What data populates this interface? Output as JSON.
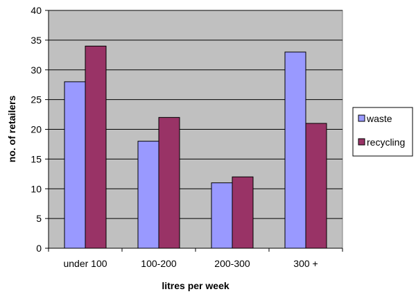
{
  "chart_data": {
    "type": "bar",
    "title": "",
    "xlabel": "litres per week",
    "ylabel": "no. of retailers",
    "categories": [
      "under 100",
      "100-200",
      "200-300",
      "300 +"
    ],
    "series": [
      {
        "name": "waste",
        "values": [
          28,
          18,
          11,
          33
        ],
        "color": "#9999ff"
      },
      {
        "name": "recycling",
        "values": [
          34,
          22,
          12,
          21
        ],
        "color": "#993366"
      }
    ],
    "ylim": [
      0,
      40
    ],
    "yticks": [
      0,
      5,
      10,
      15,
      20,
      25,
      30,
      35,
      40
    ],
    "grid": true,
    "plot_background": "#c0c0c0",
    "legend_position": "right"
  }
}
